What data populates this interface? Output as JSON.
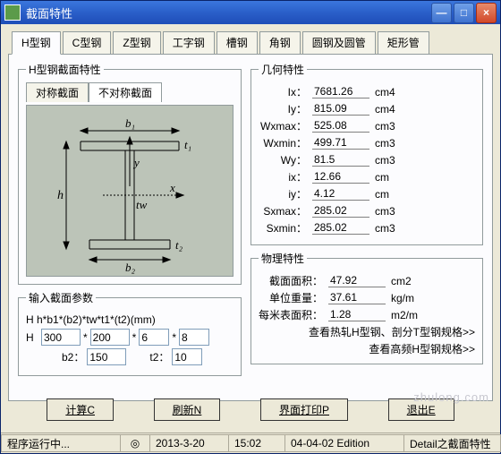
{
  "window": {
    "title": "截面特性"
  },
  "ctrls": {
    "min": "—",
    "max": "□",
    "close": "×"
  },
  "tabs": [
    "H型钢",
    "C型钢",
    "Z型钢",
    "工字钢",
    "槽钢",
    "角钢",
    "圆钢及圆管",
    "矩形管"
  ],
  "active_tab": 0,
  "section_fs": "H型钢截面特性",
  "subtabs": [
    "对称截面",
    "不对称截面"
  ],
  "active_subtab": 1,
  "diagram": {
    "b1": "b₁",
    "b2": "b₂",
    "t1": "t₁",
    "t2": "t₂",
    "tw": "tw",
    "h": "h",
    "x": "x",
    "y": "y"
  },
  "input_fs": "输入截面参数",
  "input_formula": "H  h*b1*(b2)*tw*t1*(t2)(mm)",
  "inputs": {
    "H_label": "H",
    "h": "300",
    "b1": "200",
    "tw": "6",
    "t1": "8",
    "b2_label": "b2：",
    "b2": "150",
    "t2_label": "t2：",
    "t2": "10",
    "star": "*"
  },
  "geom_fs": "几何特性",
  "geom": [
    {
      "lbl": "Ix：",
      "val": "7681.26",
      "unit": "cm4"
    },
    {
      "lbl": "Iy：",
      "val": "815.09",
      "unit": "cm4"
    },
    {
      "lbl": "Wxmax：",
      "val": "525.08",
      "unit": "cm3"
    },
    {
      "lbl": "Wxmin：",
      "val": "499.71",
      "unit": "cm3"
    },
    {
      "lbl": "Wy：",
      "val": "81.5",
      "unit": "cm3"
    },
    {
      "lbl": "ix：",
      "val": "12.66",
      "unit": "cm"
    },
    {
      "lbl": "iy：",
      "val": "4.12",
      "unit": "cm"
    },
    {
      "lbl": "Sxmax：",
      "val": "285.02",
      "unit": "cm3"
    },
    {
      "lbl": "Sxmin：",
      "val": "285.02",
      "unit": "cm3"
    }
  ],
  "phys_fs": "物理特性",
  "phys": [
    {
      "lbl": "截面面积：",
      "val": "47.92",
      "unit": "cm2"
    },
    {
      "lbl": "单位重量：",
      "val": "37.61",
      "unit": "kg/m"
    },
    {
      "lbl": "每米表面积：",
      "val": "1.28",
      "unit": "m2/m"
    }
  ],
  "links": {
    "l1": "查看热轧H型钢、剖分T型钢规格>>",
    "l2": "查看高频H型钢规格>>"
  },
  "buttons": {
    "calc": "计算C",
    "refresh": "刷新N",
    "print": "界面打印P",
    "exit": "退出E"
  },
  "status": {
    "running": "程序运行中...",
    "date": "2013-3-20",
    "time": "15:02",
    "edition": "04-04-02 Edition",
    "detail": "Detail之截面特性"
  },
  "watermark": "zhulong.com"
}
